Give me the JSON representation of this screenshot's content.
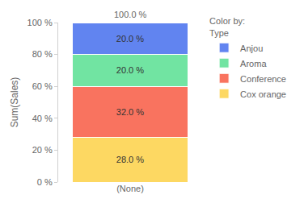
{
  "chart_data": {
    "type": "bar",
    "stacked": true,
    "categories": [
      "(None)"
    ],
    "series": [
      {
        "name": "Cox orange",
        "color": "#fdd862",
        "values": [
          28.0
        ],
        "value_labels": [
          "28.0 %"
        ]
      },
      {
        "name": "Conference",
        "color": "#f9735f",
        "values": [
          32.0
        ],
        "value_labels": [
          "32.0 %"
        ]
      },
      {
        "name": "Aroma",
        "color": "#71e4a2",
        "values": [
          20.0
        ],
        "value_labels": [
          "20.0 %"
        ]
      },
      {
        "name": "Anjou",
        "color": "#6184f0",
        "values": [
          20.0
        ],
        "value_labels": [
          "20.0 %"
        ]
      }
    ],
    "y_label": "Sum(Sales)",
    "ylim": [
      0,
      100
    ],
    "yticks": [
      {
        "value": 0,
        "label": "0 %"
      },
      {
        "value": 20,
        "label": "20 %"
      },
      {
        "value": 40,
        "label": "40 %"
      },
      {
        "value": 60,
        "label": "60 %"
      },
      {
        "value": 80,
        "label": "80 %"
      },
      {
        "value": 100,
        "label": "100 %"
      }
    ],
    "annotations": [
      {
        "text": "100.0 %",
        "x": "(None)",
        "y": 100
      }
    ],
    "legend": "top right",
    "legend_title": [
      "Color by:",
      "Type"
    ],
    "data_labels": true,
    "grid": false
  }
}
